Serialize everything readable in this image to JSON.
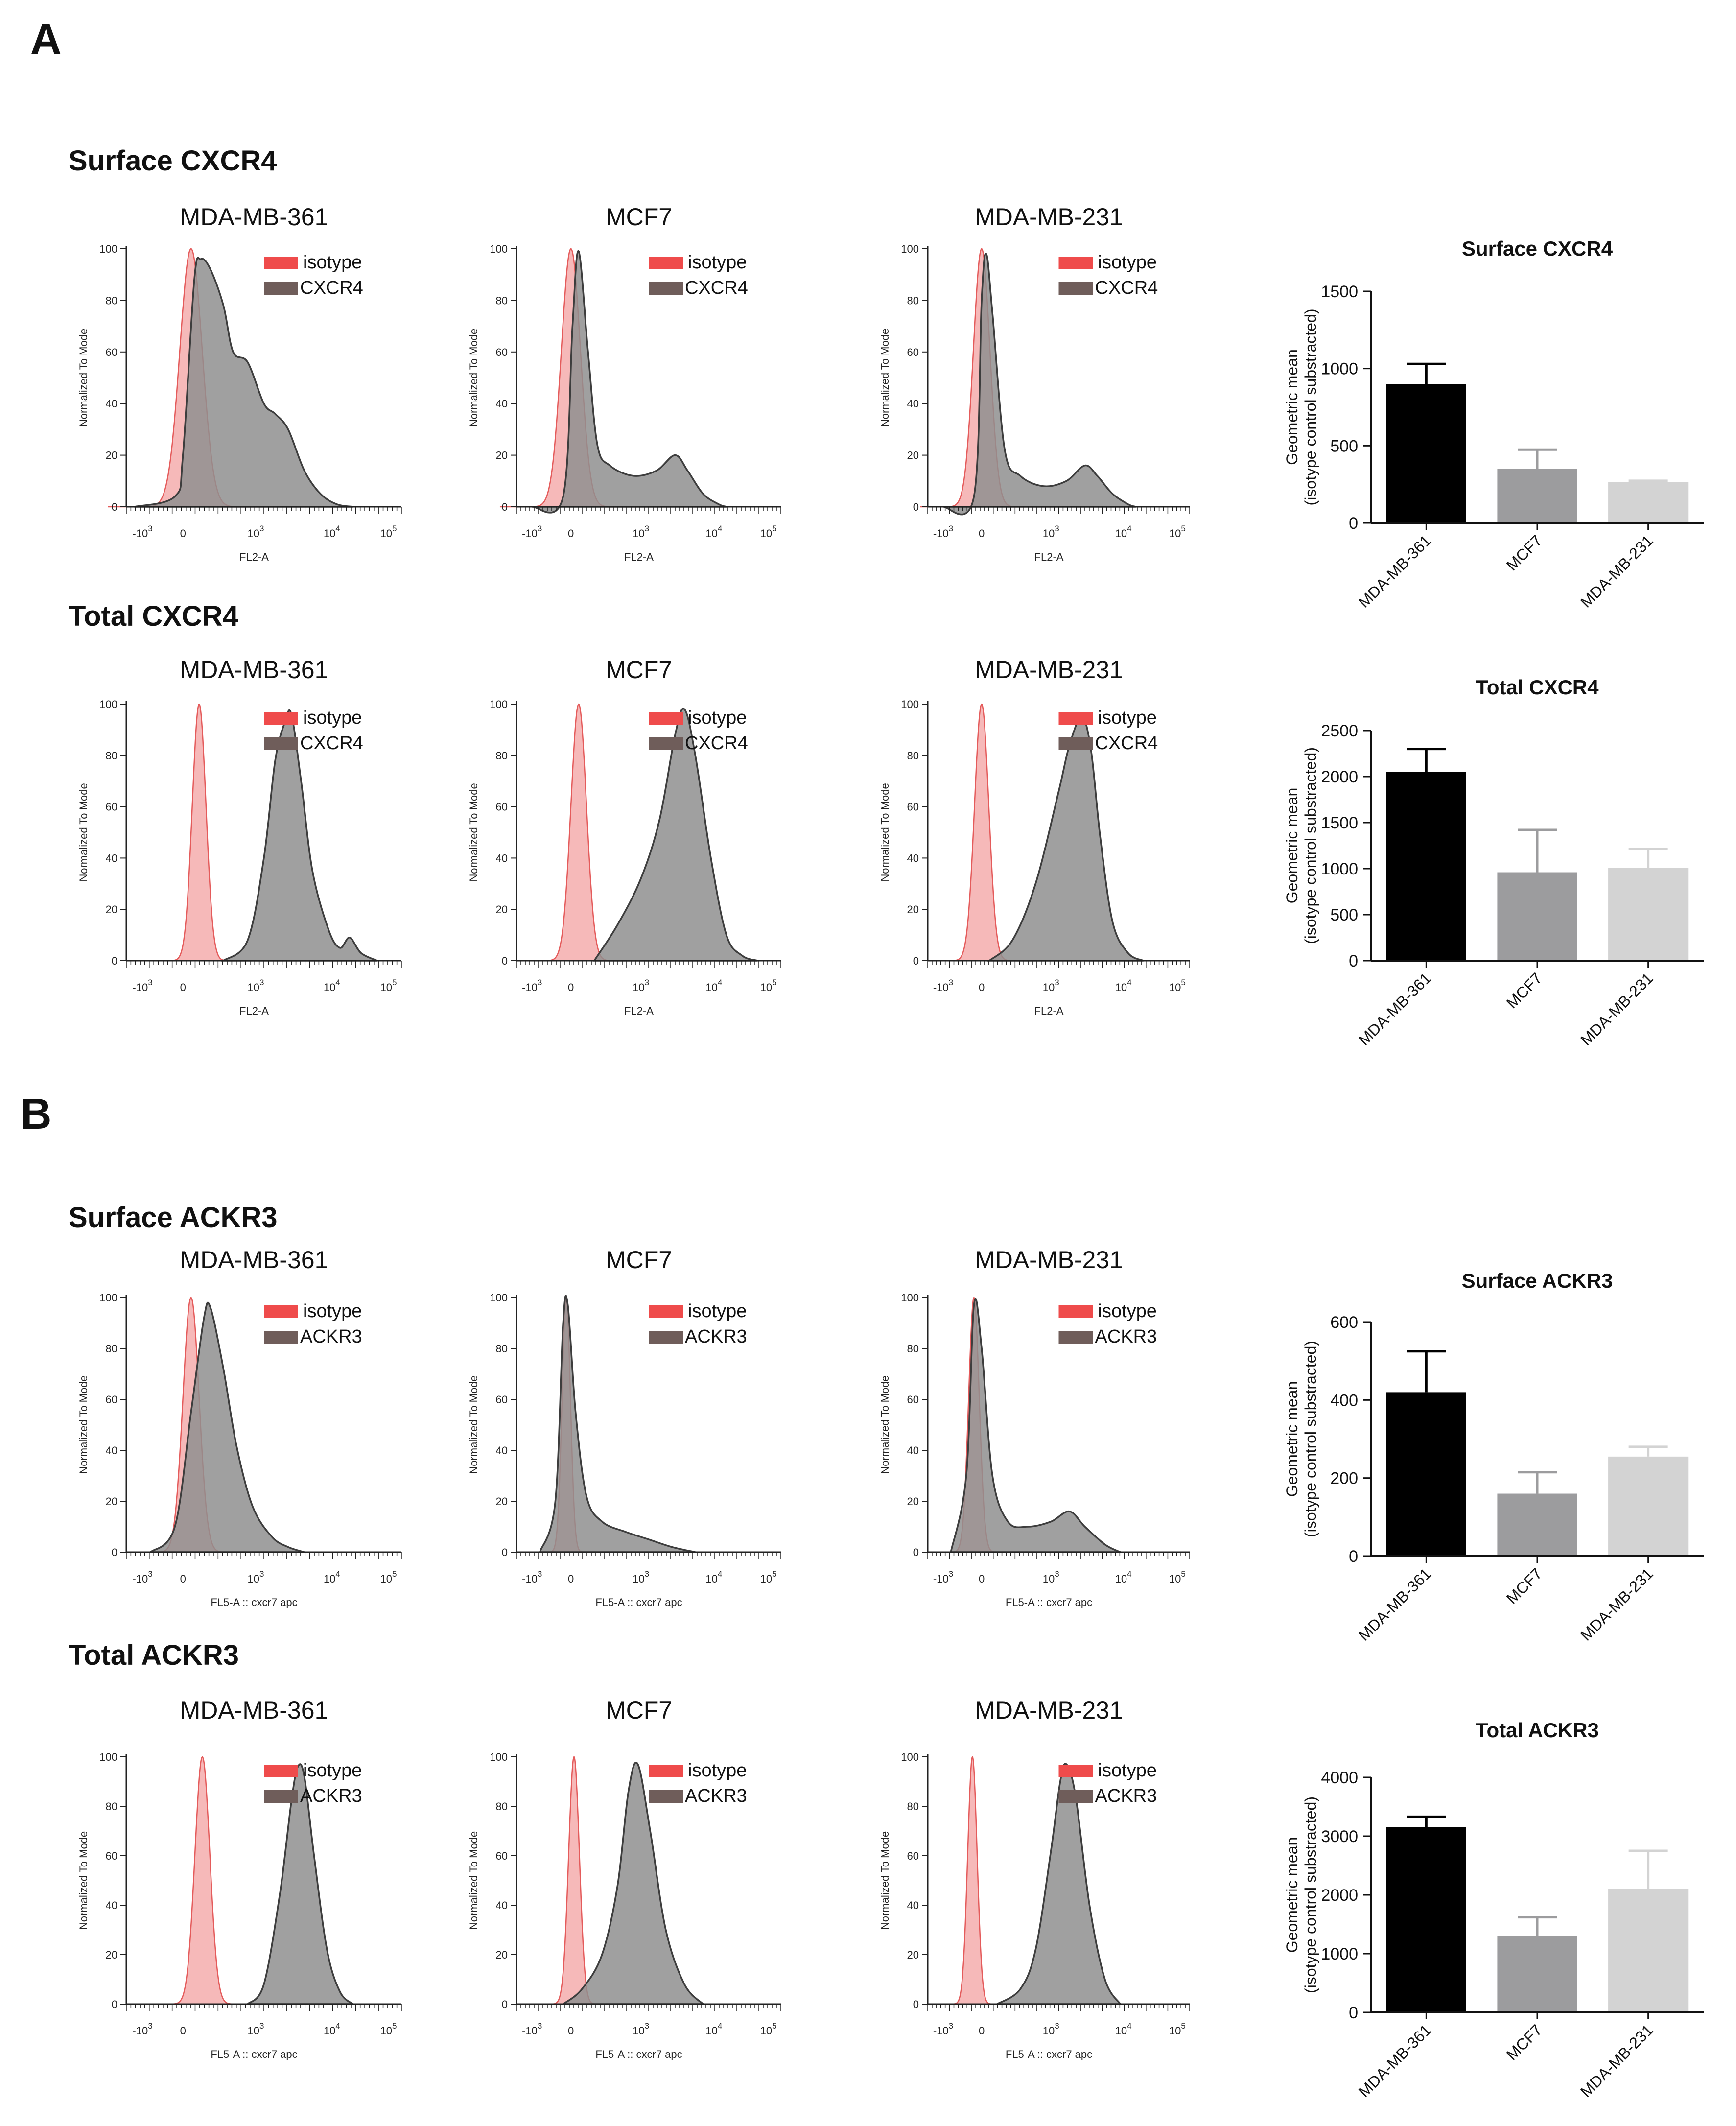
{
  "panels": [
    {
      "letter": "A",
      "blocks": [
        {
          "title": "Surface CXCR4",
          "marker": "CXCR4",
          "xlabel": "FL2-A",
          "histograms": [
            {
              "cell_line": "MDA-MB-361",
              "isotype": {
                "peak": 0.1,
                "width": 0.18
              },
              "stain": [
                [
                  -0.25,
                  0
                ],
                [
                  0.0,
                  4
                ],
                [
                  0.05,
                  20
                ],
                [
                  0.12,
                  88
                ],
                [
                  0.16,
                  96
                ],
                [
                  0.22,
                  92
                ],
                [
                  0.3,
                  78
                ],
                [
                  0.36,
                  60
                ],
                [
                  0.45,
                  56
                ],
                [
                  0.55,
                  40
                ],
                [
                  0.62,
                  36
                ],
                [
                  0.7,
                  30
                ],
                [
                  0.8,
                  14
                ],
                [
                  0.9,
                  5
                ],
                [
                  1.0,
                  1
                ],
                [
                  1.1,
                  0
                ]
              ]
            },
            {
              "cell_line": "MCF7",
              "isotype": {
                "peak": 0.05,
                "width": 0.16
              },
              "stain": [
                [
                  -0.2,
                  0
                ],
                [
                  0.0,
                  4
                ],
                [
                  0.06,
                  70
                ],
                [
                  0.1,
                  99
                ],
                [
                  0.16,
                  60
                ],
                [
                  0.22,
                  24
                ],
                [
                  0.3,
                  16
                ],
                [
                  0.45,
                  12
                ],
                [
                  0.6,
                  14
                ],
                [
                  0.72,
                  20
                ],
                [
                  0.8,
                  14
                ],
                [
                  0.9,
                  5
                ],
                [
                  1.0,
                  1
                ],
                [
                  1.05,
                  0
                ]
              ]
            },
            {
              "cell_line": "MDA-MB-231",
              "isotype": {
                "peak": 0.05,
                "width": 0.14
              },
              "stain": [
                [
                  -0.2,
                  0
                ],
                [
                  0.0,
                  4
                ],
                [
                  0.05,
                  80
                ],
                [
                  0.08,
                  98
                ],
                [
                  0.12,
                  75
                ],
                [
                  0.2,
                  22
                ],
                [
                  0.3,
                  12
                ],
                [
                  0.45,
                  8
                ],
                [
                  0.6,
                  10
                ],
                [
                  0.72,
                  16
                ],
                [
                  0.8,
                  12
                ],
                [
                  0.9,
                  5
                ],
                [
                  1.0,
                  1
                ],
                [
                  1.05,
                  0
                ]
              ]
            }
          ],
          "bar": {
            "title": "Surface CXCR4",
            "ylabel": [
              "Geometric mean",
              "(isotype control substracted)"
            ],
            "ymax": 1500,
            "ticks": [
              0,
              500,
              1000,
              1500
            ],
            "categories": [
              "MDA-MB-361",
              "MCF7",
              "MDA-MB-231"
            ],
            "values": [
              900,
              350,
              265
            ],
            "errors": [
              130,
              125,
              8
            ]
          }
        },
        {
          "title": "Total CXCR4",
          "marker": "CXCR4",
          "xlabel": "FL2-A",
          "histograms": [
            {
              "cell_line": "MDA-MB-361",
              "isotype": {
                "peak": 0.15,
                "width": 0.11
              },
              "stain": [
                [
                  0.3,
                  0
                ],
                [
                  0.45,
                  8
                ],
                [
                  0.55,
                  40
                ],
                [
                  0.62,
                  78
                ],
                [
                  0.68,
                  93
                ],
                [
                  0.72,
                  96
                ],
                [
                  0.78,
                  70
                ],
                [
                  0.85,
                  35
                ],
                [
                  0.95,
                  12
                ],
                [
                  1.02,
                  5
                ],
                [
                  1.08,
                  9
                ],
                [
                  1.15,
                  3
                ],
                [
                  1.25,
                  0
                ]
              ]
            },
            {
              "cell_line": "MCF7",
              "isotype": {
                "peak": 0.1,
                "width": 0.13
              },
              "stain": [
                [
                  0.2,
                  0
                ],
                [
                  0.35,
                  14
                ],
                [
                  0.5,
                  32
                ],
                [
                  0.62,
                  55
                ],
                [
                  0.72,
                  88
                ],
                [
                  0.78,
                  98
                ],
                [
                  0.85,
                  80
                ],
                [
                  0.95,
                  40
                ],
                [
                  1.05,
                  10
                ],
                [
                  1.15,
                  2
                ],
                [
                  1.25,
                  0
                ]
              ]
            },
            {
              "cell_line": "MDA-MB-231",
              "isotype": {
                "peak": 0.05,
                "width": 0.12
              },
              "stain": [
                [
                  0.1,
                  0
                ],
                [
                  0.25,
                  8
                ],
                [
                  0.4,
                  30
                ],
                [
                  0.55,
                  66
                ],
                [
                  0.62,
                  84
                ],
                [
                  0.7,
                  95
                ],
                [
                  0.76,
                  82
                ],
                [
                  0.82,
                  48
                ],
                [
                  0.9,
                  15
                ],
                [
                  1.0,
                  3
                ],
                [
                  1.1,
                  0
                ]
              ]
            }
          ],
          "bar": {
            "title": "Total CXCR4",
            "ylabel": [
              "Geometric mean",
              "(isotype control substracted)"
            ],
            "ymax": 2500,
            "ticks": [
              0,
              500,
              1000,
              1500,
              2000,
              2500
            ],
            "categories": [
              "MDA-MB-361",
              "MCF7",
              "MDA-MB-231"
            ],
            "values": [
              2050,
              960,
              1010
            ],
            "errors": [
              250,
              460,
              200
            ]
          }
        }
      ]
    },
    {
      "letter": "B",
      "blocks": [
        {
          "title": "Surface ACKR3",
          "marker": "ACKR3",
          "xlabel": "FL5-A :: cxcr7 apc",
          "histograms": [
            {
              "cell_line": "MDA-MB-361",
              "isotype": {
                "peak": 0.1,
                "width": 0.13
              },
              "stain": [
                [
                  -0.15,
                  0
                ],
                [
                  0.0,
                  10
                ],
                [
                  0.1,
                  55
                ],
                [
                  0.18,
                  92
                ],
                [
                  0.22,
                  96
                ],
                [
                  0.3,
                  72
                ],
                [
                  0.38,
                  42
                ],
                [
                  0.48,
                  18
                ],
                [
                  0.6,
                  6
                ],
                [
                  0.7,
                  2
                ],
                [
                  0.8,
                  0
                ]
              ]
            },
            {
              "cell_line": "MCF7",
              "isotype": {
                "peak": 0.02,
                "width": 0.07
              },
              "stain": [
                [
                  -0.15,
                  0
                ],
                [
                  -0.05,
                  20
                ],
                [
                  0.0,
                  90
                ],
                [
                  0.03,
                  97
                ],
                [
                  0.08,
                  55
                ],
                [
                  0.15,
                  22
                ],
                [
                  0.25,
                  12
                ],
                [
                  0.4,
                  8
                ],
                [
                  0.55,
                  5
                ],
                [
                  0.7,
                  2
                ],
                [
                  0.85,
                  0
                ]
              ]
            },
            {
              "cell_line": "MDA-MB-231",
              "isotype": {
                "peak": 0.0,
                "width": 0.09
              },
              "stain": [
                [
                  -0.15,
                  0
                ],
                [
                  -0.05,
                  30
                ],
                [
                  0.0,
                  97
                ],
                [
                  0.05,
                  80
                ],
                [
                  0.12,
                  30
                ],
                [
                  0.22,
                  12
                ],
                [
                  0.35,
                  10
                ],
                [
                  0.5,
                  12
                ],
                [
                  0.62,
                  16
                ],
                [
                  0.72,
                  10
                ],
                [
                  0.85,
                  3
                ],
                [
                  0.95,
                  0
                ]
              ]
            }
          ],
          "bar": {
            "title": "Surface ACKR3",
            "ylabel": [
              "Geometric mean",
              "(isotype control substracted)"
            ],
            "ymax": 600,
            "ticks": [
              0,
              200,
              400,
              600
            ],
            "categories": [
              "MDA-MB-361",
              "MCF7",
              "MDA-MB-231"
            ],
            "values": [
              420,
              160,
              255
            ],
            "errors": [
              105,
              55,
              25
            ]
          }
        },
        {
          "title": "Total ACKR3",
          "marker": "ACKR3",
          "xlabel": "FL5-A :: cxcr7 apc",
          "histograms": [
            {
              "cell_line": "MDA-MB-361",
              "isotype": {
                "peak": 0.17,
                "width": 0.12
              },
              "stain": [
                [
                  0.45,
                  0
                ],
                [
                  0.55,
                  8
                ],
                [
                  0.65,
                  45
                ],
                [
                  0.72,
                  82
                ],
                [
                  0.76,
                  96
                ],
                [
                  0.8,
                  92
                ],
                [
                  0.86,
                  60
                ],
                [
                  0.94,
                  22
                ],
                [
                  1.02,
                  5
                ],
                [
                  1.1,
                  0
                ]
              ]
            },
            {
              "cell_line": "MCF7",
              "isotype": {
                "peak": 0.07,
                "width": 0.09
              },
              "stain": [
                [
                  0.0,
                  0
                ],
                [
                  0.12,
                  6
                ],
                [
                  0.25,
                  20
                ],
                [
                  0.35,
                  48
                ],
                [
                  0.42,
                  86
                ],
                [
                  0.48,
                  97
                ],
                [
                  0.56,
                  70
                ],
                [
                  0.66,
                  30
                ],
                [
                  0.78,
                  8
                ],
                [
                  0.9,
                  0
                ]
              ]
            },
            {
              "cell_line": "MDA-MB-231",
              "isotype": {
                "peak": -0.01,
                "width": 0.08
              },
              "stain": [
                [
                  0.15,
                  0
                ],
                [
                  0.3,
                  6
                ],
                [
                  0.4,
                  22
                ],
                [
                  0.5,
                  62
                ],
                [
                  0.56,
                  90
                ],
                [
                  0.6,
                  97
                ],
                [
                  0.66,
                  84
                ],
                [
                  0.75,
                  40
                ],
                [
                  0.85,
                  10
                ],
                [
                  0.95,
                  0
                ]
              ]
            }
          ],
          "bar": {
            "title": "Total ACKR3",
            "ylabel": [
              "Geometric mean",
              "(isotype control substracted)"
            ],
            "ymax": 4000,
            "ticks": [
              0,
              1000,
              2000,
              3000,
              4000
            ],
            "categories": [
              "MDA-MB-361",
              "MCF7",
              "MDA-MB-231"
            ],
            "values": [
              3150,
              1300,
              2100
            ],
            "errors": [
              180,
              320,
              650
            ]
          }
        }
      ]
    }
  ],
  "hist_common": {
    "ylabel": "Normalized To Mode",
    "yticks": [
      "0",
      "20",
      "40",
      "60",
      "80",
      "100"
    ],
    "legend_isotype": "isotype",
    "xticks": [
      {
        "base": "-10",
        "exp": "3"
      },
      {
        "base": "0",
        "exp": ""
      },
      {
        "base": "10",
        "exp": "3"
      },
      {
        "base": "10",
        "exp": "4"
      },
      {
        "base": "10",
        "exp": "5"
      }
    ]
  },
  "colors": {
    "isotype_fill": "#f6b9b9",
    "isotype_line": "#e45b5b",
    "stain_fill": "#8f8f8f",
    "stain_line": "#3d3d3d",
    "legend_isotype": "#ef4b4b",
    "legend_stain": "#6f5d5a",
    "bar_colors": [
      "#000000",
      "#9c9c9e",
      "#d3d3d3"
    ]
  },
  "chart_data": [
    {
      "type": "bar",
      "title": "Surface CXCR4",
      "ylabel": "Geometric mean (isotype control substracted)",
      "categories": [
        "MDA-MB-361",
        "MCF7",
        "MDA-MB-231"
      ],
      "values": [
        900,
        350,
        265
      ],
      "errors": [
        130,
        125,
        8
      ],
      "ylim": [
        0,
        1500
      ]
    },
    {
      "type": "bar",
      "title": "Total CXCR4",
      "ylabel": "Geometric mean (isotype control substracted)",
      "categories": [
        "MDA-MB-361",
        "MCF7",
        "MDA-MB-231"
      ],
      "values": [
        2050,
        960,
        1010
      ],
      "errors": [
        250,
        460,
        200
      ],
      "ylim": [
        0,
        2500
      ]
    },
    {
      "type": "bar",
      "title": "Surface ACKR3",
      "ylabel": "Geometric mean (isotype control substracted)",
      "categories": [
        "MDA-MB-361",
        "MCF7",
        "MDA-MB-231"
      ],
      "values": [
        420,
        160,
        255
      ],
      "errors": [
        105,
        55,
        25
      ],
      "ylim": [
        0,
        600
      ]
    },
    {
      "type": "bar",
      "title": "Total ACKR3",
      "ylabel": "Geometric mean (isotype control substracted)",
      "categories": [
        "MDA-MB-361",
        "MCF7",
        "MDA-MB-231"
      ],
      "values": [
        3150,
        1300,
        2100
      ],
      "errors": [
        180,
        320,
        650
      ],
      "ylim": [
        0,
        4000
      ]
    }
  ]
}
